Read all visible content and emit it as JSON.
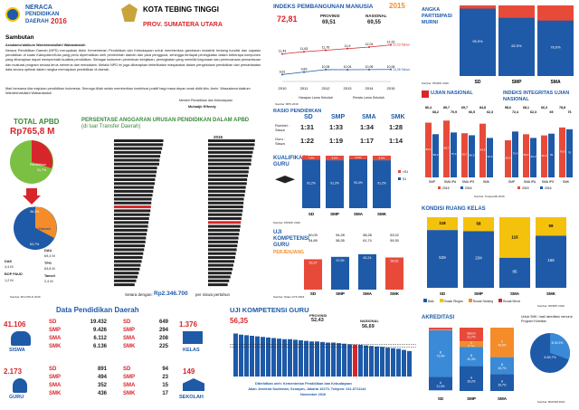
{
  "header": {
    "title_line1": "NERACA",
    "title_line2": "PENDIDIKAN",
    "title_line3": "DAERAH",
    "year": "2016",
    "region": "KOTA TEBING TINGGI",
    "province": "PROV. SUMATERA UTARA"
  },
  "sambutan": {
    "title": "Sambutan",
    "greeting": "Assalamu'alaikum Warrahmatullahi Wabarakatuh",
    "p1": "Neraca Pendidikan Daerah (NPD) merupakan Aktor Kementerian Pendidikan dan Kebudayaan untuk memberikan gambaran mutakhir tentang kondisi dan capaian pendidikan di suatu Kabupaten/Kota yang perlu diperhatikan oleh pemerintah daerah dan para pengguna, sehingga terdapat peningkatan dalam beberapa komponen yang diharapkan dapat memperbaiki kualitas pendidikan. Sebagai instrumen penentuan kebijakan, peningkatan yang memiliki kegunaan dan perencanaan pemantauan dan evaluasi program secara terus menerus dan mendalam. Melalui NPD ini juga diharapkan keterlibatan masyarakat dalam pengelolaan pendidikan dan pemanfaatan data secara optimal dalam rangka memajukan pendidikan di daerah.",
    "p2": "Mari bersama kita majukan pendidikan Indonesia. Semoga Allah selalu memberikan kontribusi positif bagi masa depan anak didik kita. Amin. Wassalamu'alaikum Warrahmatullahi Wabarakatuh",
    "sign1": "Menteri Pendidikan dan Kebudayaan",
    "sign2": "Muhadjir Effendy"
  },
  "apbd": {
    "title": "TOTAL APBD",
    "total": "Rp765,8 M",
    "pie_pct_top": "Pendidikan",
    "pie_pct_val": "31,7%",
    "dana_daerah_label": "Dana Daerah",
    "dana_daerah_val": "36,3%",
    "transfer_val": "63,7%",
    "transfer_label": "Transfer Daerah",
    "dak": "DAK",
    "dak_val": "4,4 M",
    "bop": "BOP PAUD",
    "bop_val": "1,2 M",
    "dau": "DAU",
    "dau_val": "69,4 M",
    "tpg": "TPG",
    "tpg_val": "63,8 M",
    "tamsil": "Tamsil",
    "tamsil_val": "2,4 M",
    "source": "Sumber: Biro PKLN 2016"
  },
  "anggaran": {
    "title": "PERSENTASE ANGGARAN URUSAN PENDIDIKAN DALAM APBD",
    "subtitle": "(di luar Transfer Daerah)",
    "year_right": "2015",
    "footer_label": "Setara dengan:",
    "footer_value": "Rp2.346.700",
    "footer_suffix": "per siswa pertahun"
  },
  "ipm": {
    "title": "INDEKS PEMBANGUNAN MANUSIA",
    "year": "2015",
    "local": "72,81",
    "prov_label": "PROVINSI",
    "prov_val": "69,51",
    "nas_label": "NASIONAL",
    "nas_val": "69,55",
    "legend1": "Harapan Lama Sekolah",
    "legend2": "Rerata Lama Sekolah",
    "source": "Sumber: BPS 2016"
  },
  "apm": {
    "title": "ANGKA PARTISIPASI MURNI",
    "source": "Sumber: PDSPK 2016"
  },
  "rasio": {
    "title": "RASIO PENDIDIKAN",
    "row1a": "Rombel :",
    "row1b": "Siswa",
    "row2a": "Guru :",
    "row2b": "Siswa",
    "cols": [
      "SD",
      "SMP",
      "SMA",
      "SMK"
    ],
    "r1": [
      "1:31",
      "1:33",
      "1:34",
      "1:28"
    ],
    "r2": [
      "1:22",
      "1:19",
      "1:17",
      "1:14"
    ]
  },
  "kualifikasi": {
    "title": "KUALIFIKASI",
    "title2": "GURU",
    "source": "Sumber: PDSPK 2016"
  },
  "un": {
    "title": "UJIAN NASIONAL",
    "integritas": "INDEKS INTEGRITAS UJIAN NASIONAL",
    "source": "Sumber: Puspendik 2016",
    "legend1": "2015",
    "legend2": "2016"
  },
  "ukg_small": {
    "title": "UJI",
    "title2": "KOMPETENSI",
    "title3": "GURU",
    "sub": "PERJENJANG",
    "source": "Sumber: Ditjen GTK 2016"
  },
  "ruang": {
    "title": "KONDISI RUANG KELAS",
    "legend": [
      "Baik",
      "Rusak Ringan",
      "Rusak Sedang",
      "Rusak Berat"
    ],
    "source": "Sumber: PDSPK 2016"
  },
  "dpd": {
    "title": "Data Pendidikan Daerah",
    "siswa_total": "41.106",
    "siswa_label": "SISWA",
    "siswa": [
      {
        "k": "SD",
        "v": "19.432"
      },
      {
        "k": "SMP",
        "v": "9.426"
      },
      {
        "k": "SMA",
        "v": "6.112"
      },
      {
        "k": "SMK",
        "v": "6.136"
      }
    ],
    "kelas_total": "1.376",
    "kelas_label": "KELAS",
    "kelas": [
      {
        "k": "SD",
        "v": "649"
      },
      {
        "k": "SMP",
        "v": "294"
      },
      {
        "k": "SMA",
        "v": "208"
      },
      {
        "k": "SMK",
        "v": "225"
      }
    ],
    "guru_total": "2.173",
    "guru_label": "GURU",
    "guru": [
      {
        "k": "SD",
        "v": "891"
      },
      {
        "k": "SMP",
        "v": "494"
      },
      {
        "k": "SMA",
        "v": "352"
      },
      {
        "k": "SMK",
        "v": "436"
      }
    ],
    "sekolah_total": "149",
    "sekolah_label": "SEKOLAH",
    "sekolah": [
      {
        "k": "SD",
        "v": "94"
      },
      {
        "k": "SMP",
        "v": "23"
      },
      {
        "k": "SMA",
        "v": "15"
      },
      {
        "k": "SMK",
        "v": "17"
      }
    ]
  },
  "ukg_big": {
    "title": "UJI KOMPETENSI GURU",
    "local": "56,35",
    "prov_label": "PROVINSI",
    "prov_val": "52,43",
    "nas_label": "NASIONAL",
    "nas_val": "56,69"
  },
  "akreditasi": {
    "title": "AKREDITASI",
    "note": "Untuk SMK, hasil akreditasi menurut Program Keahlian",
    "source": "Sumber: BANSM 2016"
  },
  "footer": {
    "line1": "Diterbitkan oleh: Kementerian Pendidikan dan Kebudayaan",
    "line2": "Jalan Jenderal Sudirman, Senayan, Jakarta 10270, Telepon: 021-5711144",
    "line3": "November 2016"
  },
  "chart_data": [
    {
      "type": "bar",
      "title": "ANGKA PARTISIPASI MURNI",
      "categories": [
        "SD",
        "SMP",
        "SMA"
      ],
      "series": [
        {
          "values": [
            95.5,
            82.5,
            78.6
          ]
        }
      ],
      "ylim": [
        0,
        100
      ]
    },
    {
      "type": "line",
      "title": "INDEKS PEMBANGUNAN MANUSIA",
      "x": [
        "2010",
        "2011",
        "2012",
        "2013",
        "2014",
        "2015"
      ],
      "series": [
        {
          "name": "Harapan Lama Sekolah",
          "values": [
            11.43,
            11.63,
            11.76,
            11.9,
            12.04,
            12.23
          ]
        },
        {
          "name": "Rerata Lama Sekolah",
          "values": [
            9.61,
            9.83,
            10.05,
            10.04,
            10.05,
            10.06
          ]
        }
      ],
      "end_labels": [
        "12,23 Tahun",
        "10,06 Tahun"
      ]
    },
    {
      "type": "bar",
      "title": "UJIAN NASIONAL",
      "categories": [
        "SMP",
        "SMA IPA",
        "SMA IPS",
        "SMK"
      ],
      "series": [
        {
          "name": "2015",
          "values": [
            86.4,
            89.7,
            69.7,
            84.8
          ]
        },
        {
          "name": "2016",
          "values": [
            68.2,
            70.9,
            66.5,
            62.3
          ]
        }
      ],
      "top_labels": [
        [
          "86,4",
          "68,2"
        ],
        [
          "89,7",
          "70,9"
        ],
        [
          "69,7",
          "66,5"
        ],
        [
          "84,8",
          "62,3"
        ]
      ]
    },
    {
      "type": "bar",
      "title": "INDEKS INTEGRITAS UJIAN NASIONAL",
      "categories": [
        "SMP",
        "SMA IPA",
        "SMA IPS",
        "SMK"
      ],
      "series": [
        {
          "name": "2015",
          "values": [
            58.6,
            68.1,
            66.3,
            78.8
          ]
        },
        {
          "name": "2016",
          "values": [
            72.4,
            62.3,
            69.0,
            76.0
          ]
        }
      ]
    },
    {
      "type": "bar",
      "title": "KUALIFIKASI GURU",
      "categories": [
        "SD",
        "SMP",
        "SMA",
        "SMK"
      ],
      "series": [
        {
          "name": "<S1",
          "values": [
            7.8,
            8.8,
            6.6,
            8.8
          ]
        },
        {
          "name": "S1",
          "values": [
            92.2,
            91.2,
            93.4,
            91.2
          ]
        }
      ]
    },
    {
      "type": "bar",
      "title": "UJI KOMPETENSI GURU PERJENJANG",
      "categories": [
        "SD",
        "SMP",
        "SMA",
        "SMK"
      ],
      "values": [
        53.37,
        57.59,
        62.24,
        56.52
      ],
      "prov": [
        "50,09",
        "54,28",
        "58,28",
        "53,02"
      ],
      "nas": [
        "54,89",
        "58,35",
        "61,74",
        "59,30"
      ]
    },
    {
      "type": "bar",
      "title": "KONDISI RUANG KELAS",
      "categories": [
        "SD",
        "SMP",
        "SMA",
        "SMK"
      ],
      "series": [
        {
          "name": "Baik",
          "values": [
            529,
            234,
            85,
            166
          ]
        },
        {
          "name": "Rusak Ringan",
          "values": [
            118,
            58,
            115,
            59
          ]
        }
      ]
    },
    {
      "type": "bar",
      "title": "UJI KOMPETENSI GURU",
      "local": 56.35,
      "prov": 52.43,
      "nas": 56.69,
      "values": [
        76,
        74,
        73,
        72,
        71,
        70,
        69,
        68,
        67,
        66,
        66,
        65,
        64,
        63,
        62,
        62,
        61,
        60,
        60,
        59,
        58,
        57,
        56.35,
        56,
        55,
        54,
        53,
        52,
        51,
        50,
        49,
        47,
        45
      ]
    },
    {
      "type": "bar",
      "title": "AKREDITASI",
      "categories": [
        "SD",
        "SMP",
        "SMA"
      ],
      "series": [
        {
          "name": "A",
          "values": [
            21.3,
            39.2,
            26.7
          ]
        },
        {
          "name": "B",
          "values": [
            73.4,
            30.4,
            26.7
          ]
        },
        {
          "name": "C",
          "values": [
            1.1,
            8.7,
            46.6
          ]
        },
        {
          "name": "Belum",
          "values": [
            3.2,
            21.7,
            0
          ]
        }
      ]
    },
    {
      "type": "pie",
      "title": "AKREDITASI SMK",
      "values": [
        69.7,
        30.3
      ],
      "labels": [
        "A 69,7%",
        "B 30,3%"
      ]
    }
  ]
}
